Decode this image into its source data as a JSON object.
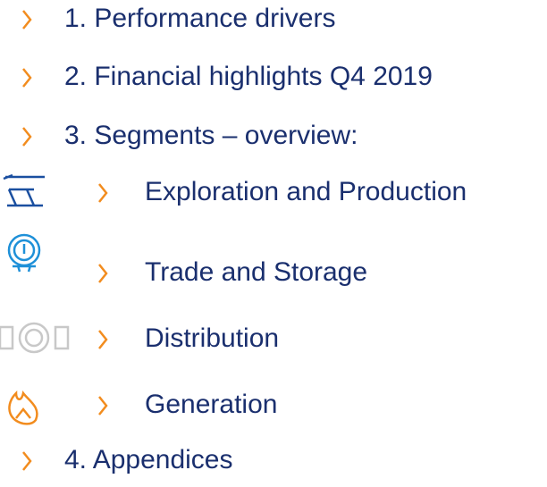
{
  "items": [
    {
      "label": "1. Performance drivers"
    },
    {
      "label": "2. Financial highlights Q4 2019"
    },
    {
      "label": "3. Segments – overview:"
    },
    {
      "label": "Exploration and Production"
    },
    {
      "label": "Trade and Storage"
    },
    {
      "label": "Distribution"
    },
    {
      "label": "Generation"
    },
    {
      "label": "4. Appendices"
    }
  ]
}
